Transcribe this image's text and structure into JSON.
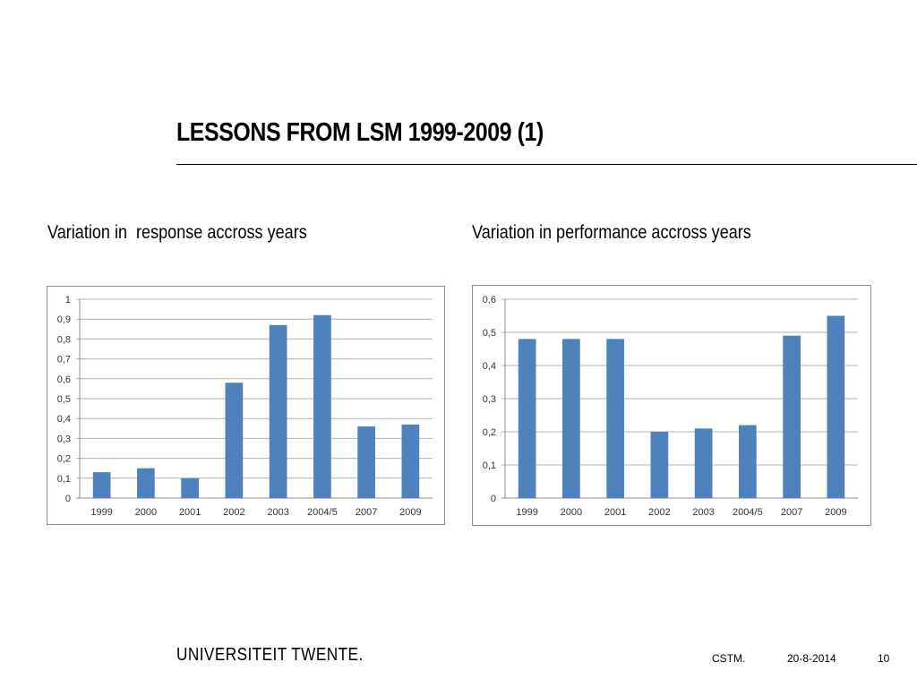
{
  "slide": {
    "title": "LESSONS FROM LSM 1999-2009 (1)",
    "subtitle_left": "Variation in  response accross years",
    "subtitle_right": "Variation in performance accross years"
  },
  "footer": {
    "logo_text": "UNIVERSITEIT TWENTE.",
    "org": "CSTM.",
    "date": "20-8-2014",
    "page": "10"
  },
  "colors": {
    "bar": "#4f81bd",
    "grid": "#b3b3b3",
    "axis_text": "#333333"
  },
  "chart_data": [
    {
      "type": "bar",
      "title": "",
      "xlabel": "",
      "ylabel": "",
      "categories": [
        "1999",
        "2000",
        "2001",
        "2002",
        "2003",
        "2004/5",
        "2007",
        "2009"
      ],
      "values": [
        0.13,
        0.15,
        0.1,
        0.58,
        0.87,
        0.92,
        0.36,
        0.37
      ],
      "ylim": [
        0,
        1
      ],
      "yticks": [
        0,
        0.1,
        0.2,
        0.3,
        0.4,
        0.5,
        0.6,
        0.7,
        0.8,
        0.9,
        1
      ],
      "ytick_labels": [
        "0",
        "0,1",
        "0,2",
        "0,3",
        "0,4",
        "0,5",
        "0,6",
        "0,7",
        "0,8",
        "0,9",
        "1"
      ],
      "grid": true,
      "legend": "none"
    },
    {
      "type": "bar",
      "title": "",
      "xlabel": "",
      "ylabel": "",
      "categories": [
        "1999",
        "2000",
        "2001",
        "2002",
        "2003",
        "2004/5",
        "2007",
        "2009"
      ],
      "values": [
        0.48,
        0.48,
        0.48,
        0.2,
        0.21,
        0.22,
        0.49,
        0.55
      ],
      "ylim": [
        0,
        0.6
      ],
      "yticks": [
        0,
        0.1,
        0.2,
        0.3,
        0.4,
        0.5,
        0.6
      ],
      "ytick_labels": [
        "0",
        "0,1",
        "0,2",
        "0,3",
        "0,4",
        "0,5",
        "0,6"
      ],
      "grid": true,
      "legend": "none"
    }
  ]
}
